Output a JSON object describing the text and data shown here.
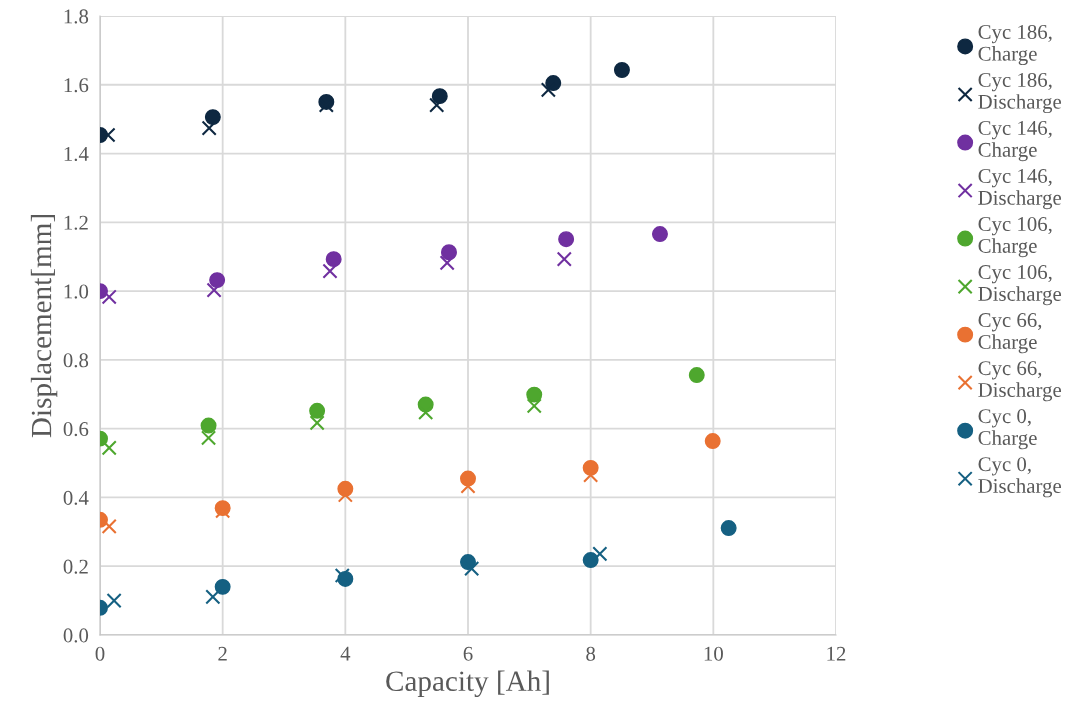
{
  "chart_data": {
    "type": "scatter",
    "xlabel": "Capacity [Ah]",
    "ylabel": "Displacement[mm]",
    "xlim": [
      0,
      12
    ],
    "xticks": [
      0,
      2,
      4,
      6,
      8,
      10,
      12
    ],
    "ylim": [
      0,
      1.8
    ],
    "yticks": [
      {
        "value": 0,
        "label": "0.0"
      },
      0.2,
      0.4,
      0.6,
      0.8,
      {
        "value": 1,
        "label": "1.0"
      },
      1.2,
      1.4,
      1.6,
      1.8
    ],
    "grid": true,
    "legend": "right",
    "series": [
      {
        "name": "Cyc 186,\nCharge",
        "color": "#0e2841",
        "marker": "circle",
        "x": [
          0,
          1.84,
          3.69,
          5.54,
          7.39,
          8.51
        ],
        "values": [
          1.454,
          1.506,
          1.55,
          1.567,
          1.605,
          1.643
        ]
      },
      {
        "name": "Cyc 186,\nDischarge",
        "color": "#0e2841",
        "marker": "cross",
        "x": [
          0.13,
          1.78,
          3.69,
          5.49,
          7.31
        ],
        "values": [
          1.454,
          1.474,
          1.541,
          1.541,
          1.585
        ]
      },
      {
        "name": "Cyc 146,\nCharge",
        "color": "#7030a0",
        "marker": "circle",
        "x": [
          0,
          1.91,
          3.81,
          5.69,
          7.6,
          9.13
        ],
        "values": [
          1.0,
          1.032,
          1.093,
          1.113,
          1.151,
          1.166
        ]
      },
      {
        "name": "Cyc 146,\nDischarge",
        "color": "#7030a0",
        "marker": "cross",
        "x": [
          0.15,
          1.86,
          3.75,
          5.66,
          7.57
        ],
        "values": [
          0.983,
          1.003,
          1.058,
          1.082,
          1.093
        ]
      },
      {
        "name": "Cyc 106,\nCharge",
        "color": "#4ea72e",
        "marker": "circle",
        "x": [
          0,
          1.77,
          3.54,
          5.31,
          7.08,
          9.73
        ],
        "values": [
          0.571,
          0.609,
          0.652,
          0.67,
          0.699,
          0.756
        ]
      },
      {
        "name": "Cyc 106,\nDischarge",
        "color": "#4ea72e",
        "marker": "cross",
        "x": [
          0.15,
          1.77,
          3.54,
          5.31,
          7.08
        ],
        "values": [
          0.544,
          0.573,
          0.617,
          0.647,
          0.666
        ]
      },
      {
        "name": "Cyc 66,\nCharge",
        "color": "#e97132",
        "marker": "circle",
        "x": [
          0,
          2.0,
          4.0,
          6.0,
          8.0,
          9.99
        ],
        "values": [
          0.335,
          0.369,
          0.425,
          0.455,
          0.486,
          0.564
        ]
      },
      {
        "name": "Cyc 66,\nDischarge",
        "color": "#e97132",
        "marker": "cross",
        "x": [
          0.15,
          2.0,
          4.0,
          6.0,
          8.0
        ],
        "values": [
          0.316,
          0.361,
          0.407,
          0.433,
          0.465
        ]
      },
      {
        "name": "Cyc 0,\nCharge",
        "color": "#156082",
        "marker": "circle",
        "x": [
          0,
          2.0,
          4.0,
          6.0,
          8.0,
          10.25
        ],
        "values": [
          0.079,
          0.14,
          0.163,
          0.212,
          0.218,
          0.311
        ]
      },
      {
        "name": "Cyc 0,\nDischarge",
        "color": "#156082",
        "marker": "cross",
        "x": [
          0.23,
          1.84,
          3.95,
          6.06,
          8.15
        ],
        "values": [
          0.1,
          0.111,
          0.173,
          0.193,
          0.236
        ]
      }
    ]
  }
}
